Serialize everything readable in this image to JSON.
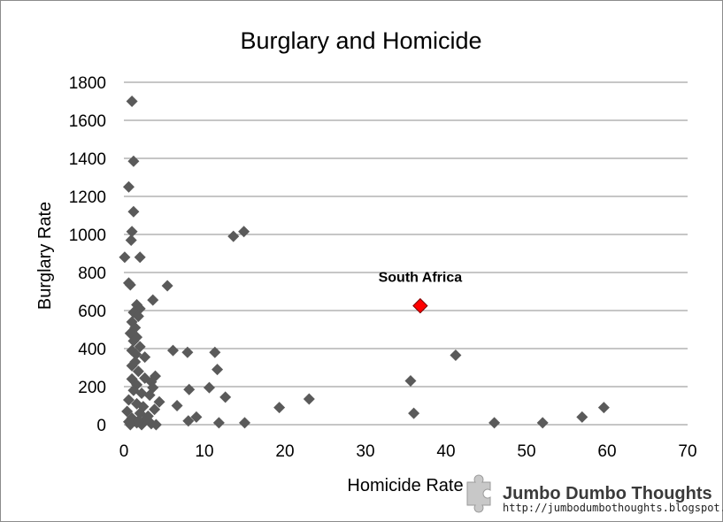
{
  "chart_data": {
    "type": "scatter",
    "title": "Burglary and Homicide",
    "xlabel": "Homicide Rate",
    "ylabel": "Burglary Rate",
    "xlim": [
      0,
      70
    ],
    "ylim": [
      0,
      1800
    ],
    "xticks": [
      0,
      10,
      20,
      30,
      40,
      50,
      60,
      70
    ],
    "yticks": [
      0,
      200,
      400,
      600,
      800,
      1000,
      1200,
      1400,
      1600,
      1800
    ],
    "grid": "horizontal",
    "colors": {
      "points": "#5a5a5a",
      "highlight": "#ff0000",
      "grid": "#8c8c8c"
    },
    "series": [
      {
        "points": [
          [
            1.0,
            1700
          ],
          [
            1.2,
            1385
          ],
          [
            0.6,
            1250
          ],
          [
            1.2,
            1120
          ],
          [
            1.0,
            1015
          ],
          [
            0.9,
            970
          ],
          [
            0.1,
            880
          ],
          [
            2.0,
            880
          ],
          [
            0.6,
            745
          ],
          [
            0.8,
            735
          ],
          [
            5.4,
            730
          ],
          [
            3.6,
            655
          ],
          [
            1.6,
            630
          ],
          [
            2.0,
            610
          ],
          [
            1.2,
            590
          ],
          [
            1.8,
            570
          ],
          [
            1.0,
            540
          ],
          [
            1.4,
            510
          ],
          [
            0.8,
            480
          ],
          [
            1.6,
            460
          ],
          [
            1.2,
            440
          ],
          [
            2.0,
            410
          ],
          [
            1.0,
            390
          ],
          [
            1.5,
            370
          ],
          [
            2.6,
            355
          ],
          [
            1.4,
            330
          ],
          [
            1.0,
            310
          ],
          [
            1.8,
            280
          ],
          [
            3.9,
            255
          ],
          [
            2.6,
            245
          ],
          [
            1.0,
            240
          ],
          [
            3.4,
            225
          ],
          [
            1.6,
            210
          ],
          [
            3.6,
            195
          ],
          [
            1.2,
            180
          ],
          [
            2.2,
            165
          ],
          [
            3.2,
            155
          ],
          [
            0.6,
            130
          ],
          [
            4.4,
            120
          ],
          [
            1.6,
            110
          ],
          [
            2.4,
            95
          ],
          [
            3.8,
            80
          ],
          [
            0.4,
            70
          ],
          [
            2.0,
            60
          ],
          [
            3.0,
            45
          ],
          [
            1.0,
            35
          ],
          [
            2.6,
            25
          ],
          [
            0.6,
            15
          ],
          [
            1.6,
            10
          ],
          [
            3.4,
            5
          ],
          [
            2.2,
            0
          ],
          [
            4.0,
            0
          ],
          [
            0.8,
            0
          ],
          [
            1.8,
            20
          ],
          [
            6.1,
            390
          ],
          [
            7.9,
            380
          ],
          [
            11.3,
            380
          ],
          [
            11.6,
            290
          ],
          [
            10.6,
            195
          ],
          [
            8.1,
            185
          ],
          [
            12.6,
            145
          ],
          [
            6.6,
            100
          ],
          [
            9.0,
            40
          ],
          [
            8.0,
            20
          ],
          [
            11.8,
            10
          ],
          [
            15.0,
            10
          ],
          [
            13.6,
            990
          ],
          [
            14.9,
            1015
          ],
          [
            19.3,
            90
          ],
          [
            23.0,
            135
          ],
          [
            35.6,
            230
          ],
          [
            36.0,
            60
          ],
          [
            41.2,
            365
          ],
          [
            46.0,
            10
          ],
          [
            52.0,
            10
          ],
          [
            56.9,
            40
          ],
          [
            59.6,
            90
          ]
        ]
      }
    ],
    "highlight": {
      "label": "South Africa",
      "x": 36.8,
      "y": 625
    }
  },
  "watermark": {
    "title": "Jumbo Dumbo Thoughts",
    "url": "http://jumbodumbothoughts.blogspot.com",
    "icon": "puzzle-piece-icon"
  }
}
